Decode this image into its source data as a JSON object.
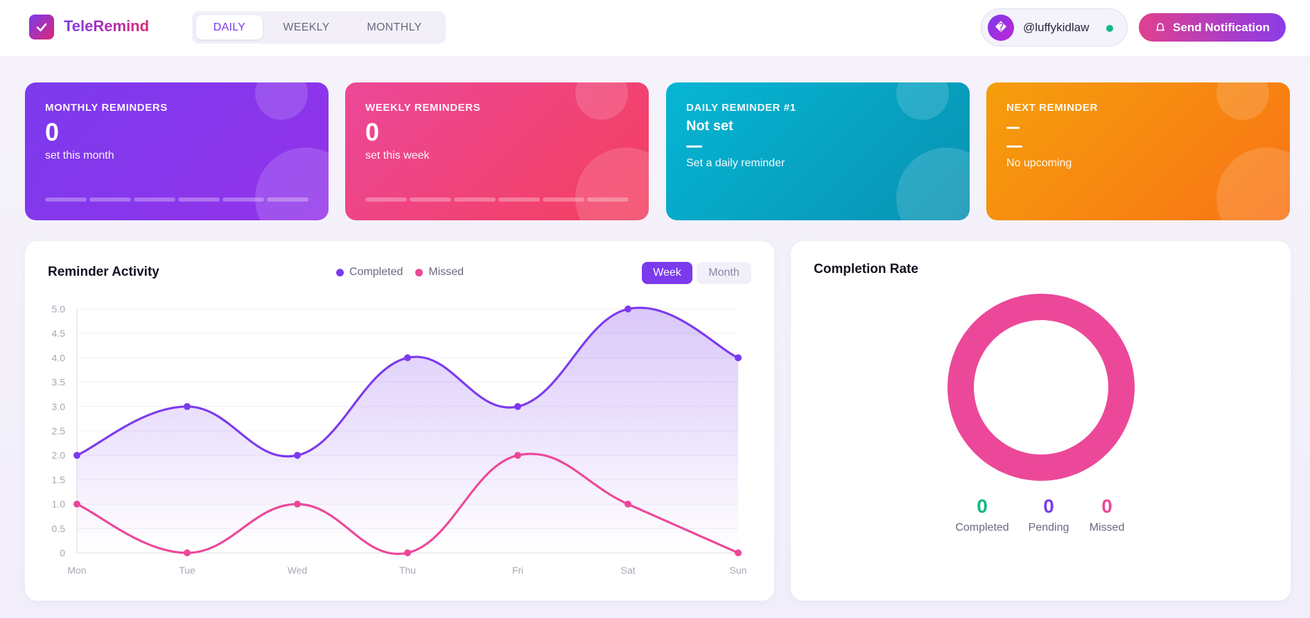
{
  "app": {
    "name": "TeleRemind",
    "logo_icon": "check-icon",
    "tabs": [
      {
        "label": "DAILY",
        "active": true
      },
      {
        "label": "WEEKLY",
        "active": false
      },
      {
        "label": "MONTHLY",
        "active": false
      }
    ]
  },
  "user": {
    "avatar_glyph": "�",
    "handle": "@luffykidlaw",
    "status": "online",
    "status_color": "#10b981"
  },
  "notify_button": {
    "label": "Send Notification",
    "icon": "bell-icon"
  },
  "cards": {
    "monthly": {
      "label": "MONTHLY REMINDERS",
      "value": "0",
      "sub": "set this month",
      "color": "#7c3aed"
    },
    "weekly": {
      "label": "WEEKLY REMINDERS",
      "value": "0",
      "sub": "set this week",
      "color": "#ec4899"
    },
    "daily": {
      "label": "DAILY REMINDER #1",
      "title": "Not set",
      "sub": "Set a daily reminder",
      "color": "#06b6d4"
    },
    "next": {
      "label": "NEXT REMINDER",
      "sub": "No upcoming",
      "color": "#f59e0b"
    }
  },
  "activity": {
    "title": "Reminder Activity",
    "range_buttons": [
      {
        "label": "Week",
        "active": true
      },
      {
        "label": "Month",
        "active": false
      }
    ]
  },
  "chart_data": {
    "type": "line",
    "title": "Reminder Activity",
    "xlabel": "",
    "ylabel": "",
    "categories": [
      "Mon",
      "Tue",
      "Wed",
      "Thu",
      "Fri",
      "Sat",
      "Sun"
    ],
    "ylim": [
      0,
      5
    ],
    "yticks": [
      "0",
      "0.5",
      "1.0",
      "1.5",
      "2.0",
      "2.5",
      "3.0",
      "3.5",
      "4.0",
      "4.5",
      "5.0"
    ],
    "grid": true,
    "legend_position": "top-center",
    "series": [
      {
        "name": "Completed",
        "color": "#7c3aed",
        "values": [
          2,
          3,
          2,
          4,
          3,
          5,
          4
        ],
        "filled": true
      },
      {
        "name": "Missed",
        "color": "#ec4899",
        "values": [
          1,
          0,
          1,
          0,
          2,
          1,
          0
        ],
        "filled": false
      }
    ]
  },
  "completion": {
    "title": "Completion Rate",
    "donut_color": "#ec4899",
    "stats": [
      {
        "value": "0",
        "label": "Completed",
        "color": "#10b981"
      },
      {
        "value": "0",
        "label": "Pending",
        "color": "#7c3aed"
      },
      {
        "value": "0",
        "label": "Missed",
        "color": "#ec4899"
      }
    ]
  }
}
